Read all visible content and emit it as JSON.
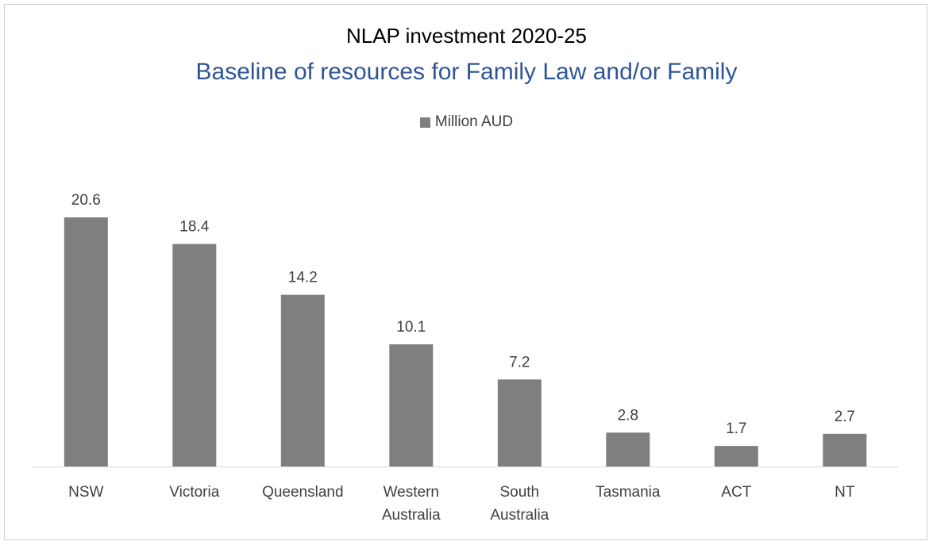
{
  "chart_data": {
    "type": "bar",
    "title": "NLAP investment 2020-25",
    "subtitle": "Baseline of resources for Family Law and/or Family",
    "categories": [
      [
        "NSW"
      ],
      [
        "Victoria"
      ],
      [
        "Queensland"
      ],
      [
        "Western",
        "Australia"
      ],
      [
        "South",
        "Australia"
      ],
      [
        "Tasmania"
      ],
      [
        "ACT"
      ],
      [
        "NT"
      ]
    ],
    "series": [
      {
        "name": "Million AUD",
        "values": [
          20.6,
          18.4,
          14.2,
          10.1,
          7.2,
          2.8,
          1.7,
          2.7
        ],
        "color": "#7f7f7f"
      }
    ],
    "value_labels": [
      "20.6",
      "18.4",
      "14.2",
      "10.1",
      "7.2",
      "2.8",
      "1.7",
      "2.7"
    ],
    "ylim": [
      0,
      20.6
    ],
    "grid": false,
    "legend_position": "top",
    "colors": {
      "title": "#000000",
      "subtitle": "#2f5597",
      "labels": "#404040",
      "axis": "#d9d9d9"
    }
  }
}
